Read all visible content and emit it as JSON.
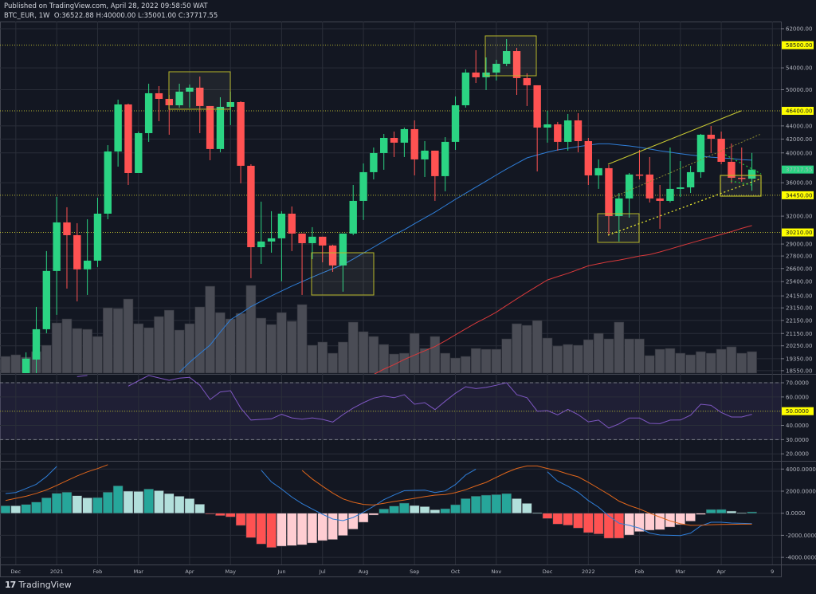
{
  "header": {
    "published": "Published on TradingView.com, April 28, 2022 09:58:50 WAT",
    "symbol_line": "BTC_EUR, 1W  O:36522.88 H:40000.00 L:35001.00 C:37717.55"
  },
  "footer": {
    "logo_mark": "17",
    "brand": "TradingView"
  },
  "colors": {
    "up": "#2bd483",
    "down": "#ff5252",
    "volume": "#4a4c55",
    "ma_fast": "#2962ff",
    "ma_slow": "#e53935",
    "rsi": "#7e57c2",
    "macd": "#2196f3",
    "signal": "#ff6d00",
    "level": "#ffff00",
    "hist_up_strong": "#26a69a",
    "hist_up_weak": "#b2dfdb",
    "hist_down_strong": "#ff5252",
    "hist_down_weak": "#ffcdd2"
  },
  "chart_data": {
    "type": "candlestick",
    "symbol": "BTC_EUR",
    "interval": "1W",
    "y_scale": "log",
    "ylim": [
      18550,
      62000
    ],
    "grid": true,
    "weeks": [
      "2020-11-30",
      "2020-12-07",
      "2020-12-14",
      "2020-12-21",
      "2020-12-28",
      "2021-01-04",
      "2021-01-11",
      "2021-01-18",
      "2021-01-25",
      "2021-02-01",
      "2021-02-08",
      "2021-02-15",
      "2021-02-22",
      "2021-03-01",
      "2021-03-08",
      "2021-03-15",
      "2021-03-22",
      "2021-03-29",
      "2021-04-05",
      "2021-04-12",
      "2021-04-19",
      "2021-04-26",
      "2021-05-03",
      "2021-05-10",
      "2021-05-17",
      "2021-05-24",
      "2021-05-31",
      "2021-06-07",
      "2021-06-14",
      "2021-06-21",
      "2021-06-28",
      "2021-07-05",
      "2021-07-12",
      "2021-07-19",
      "2021-07-26",
      "2021-08-02",
      "2021-08-09",
      "2021-08-16",
      "2021-08-23",
      "2021-08-30",
      "2021-09-06",
      "2021-09-13",
      "2021-09-20",
      "2021-09-27",
      "2021-10-04",
      "2021-10-11",
      "2021-10-18",
      "2021-10-25",
      "2021-11-01",
      "2021-11-08",
      "2021-11-15",
      "2021-11-22",
      "2021-11-29",
      "2021-12-06",
      "2021-12-13",
      "2021-12-20",
      "2021-12-27",
      "2022-01-03",
      "2022-01-10",
      "2022-01-17",
      "2022-01-24",
      "2022-01-31",
      "2022-02-07",
      "2022-02-14",
      "2022-02-21",
      "2022-02-28",
      "2022-03-07",
      "2022-03-14",
      "2022-03-21",
      "2022-03-28",
      "2022-04-04",
      "2022-04-11",
      "2022-04-18",
      "2022-04-25"
    ],
    "ohlc": [
      null,
      null,
      [
        18390,
        19790,
        18390,
        19350
      ],
      [
        19290,
        23230,
        18390,
        21470
      ],
      [
        21470,
        28290,
        21170,
        26370
      ],
      [
        26370,
        34250,
        22590,
        31300
      ],
      [
        31300,
        33020,
        24780,
        29920
      ],
      [
        29920,
        31210,
        23690,
        26520
      ],
      [
        26520,
        31650,
        24230,
        27350
      ],
      [
        27350,
        34150,
        26740,
        32280
      ],
      [
        32280,
        41110,
        31650,
        40200
      ],
      [
        40200,
        48270,
        38110,
        47460
      ],
      [
        47460,
        47600,
        35720,
        37260
      ],
      [
        37260,
        43130,
        37260,
        42890
      ],
      [
        42890,
        51060,
        41590,
        49370
      ],
      [
        49370,
        50630,
        44740,
        48400
      ],
      [
        48400,
        49090,
        42650,
        47320
      ],
      [
        47320,
        51060,
        46930,
        49650
      ],
      [
        49650,
        50920,
        46930,
        50350
      ],
      [
        50350,
        52370,
        42890,
        47200
      ],
      [
        47200,
        47200,
        38980,
        40550
      ],
      [
        40550,
        48680,
        40090,
        47060
      ],
      [
        47060,
        49650,
        44120,
        47860
      ],
      [
        47860,
        48000,
        35930,
        38220
      ],
      [
        38220,
        38435,
        25710,
        28680
      ],
      [
        28680,
        33680,
        27040,
        29260
      ],
      [
        29260,
        32560,
        28130,
        29590
      ],
      [
        29590,
        32560,
        25420,
        32280
      ],
      [
        32280,
        33110,
        28290,
        30090
      ],
      [
        30090,
        30090,
        24230,
        29090
      ],
      [
        29090,
        30780,
        27500,
        29760
      ],
      [
        29760,
        29760,
        27190,
        28850
      ],
      [
        28850,
        28930,
        26290,
        26890
      ],
      [
        26890,
        30090,
        24510,
        30090
      ],
      [
        30090,
        35720,
        29920,
        33770
      ],
      [
        33770,
        38540,
        31570,
        37370
      ],
      [
        37370,
        40770,
        36430,
        39980
      ],
      [
        39980,
        42770,
        37690,
        42170
      ],
      [
        42170,
        43130,
        39420,
        41470
      ],
      [
        41470,
        43740,
        39420,
        43500
      ],
      [
        43500,
        44860,
        36950,
        39090
      ],
      [
        39090,
        41700,
        36740,
        40320
      ],
      [
        40320,
        40320,
        33770,
        36850
      ],
      [
        36850,
        42290,
        34930,
        41590
      ],
      [
        41590,
        48810,
        40430,
        47320
      ],
      [
        47320,
        53720,
        46930,
        53110
      ],
      [
        53110,
        57470,
        51200,
        52230
      ],
      [
        52230,
        56030,
        49930,
        53110
      ],
      [
        53110,
        55560,
        51640,
        54780
      ],
      [
        54780,
        59770,
        54320,
        57300
      ],
      [
        57300,
        57950,
        49090,
        52080
      ],
      [
        52080,
        52960,
        47200,
        50780
      ],
      [
        50780,
        50780,
        37470,
        43740
      ],
      [
        43740,
        46410,
        41470,
        44240
      ],
      [
        44240,
        44620,
        40320,
        41590
      ],
      [
        41590,
        45890,
        40320,
        44860
      ],
      [
        44860,
        46020,
        40090,
        41700
      ],
      [
        41700,
        42170,
        35720,
        36950
      ],
      [
        36950,
        39090,
        35230,
        37900
      ],
      [
        37900,
        38330,
        29920,
        32010
      ],
      [
        32010,
        34730,
        29260,
        34060
      ],
      [
        34060,
        37260,
        31830,
        37060
      ],
      [
        37060,
        40430,
        36430,
        36950
      ],
      [
        37060,
        39420,
        33580,
        34060
      ],
      [
        34060,
        35720,
        30600,
        33770
      ],
      [
        33770,
        40770,
        33580,
        35230
      ],
      [
        35230,
        38860,
        34250,
        35420
      ],
      [
        35420,
        38220,
        34730,
        37370
      ],
      [
        37370,
        42770,
        36640,
        42650
      ],
      [
        42650,
        43990,
        39980,
        42050
      ],
      [
        42050,
        43130,
        38435,
        38760
      ],
      [
        38760,
        41350,
        35930,
        36640
      ],
      [
        36640,
        40770,
        36130,
        36520
      ],
      [
        36522.88,
        40000,
        35001,
        37717.55
      ]
    ],
    "volume_relative": [
      21,
      23,
      20,
      27,
      35,
      63,
      68,
      56,
      55,
      46,
      82,
      81,
      93,
      62,
      57,
      71,
      79,
      54,
      62,
      83,
      109,
      76,
      68,
      75,
      110,
      69,
      61,
      76,
      65,
      86,
      35,
      39,
      25,
      39,
      64,
      52,
      46,
      36,
      24,
      25,
      50,
      31,
      46,
      25,
      19,
      21,
      31,
      30,
      30,
      43,
      62,
      60,
      66,
      44,
      34,
      36,
      35,
      42,
      50,
      43,
      64,
      43,
      43,
      22,
      30,
      31,
      25,
      23,
      27,
      25,
      30,
      33,
      25,
      27
    ],
    "ma_fast": [
      null,
      null,
      null,
      null,
      null,
      null,
      null,
      null,
      null,
      null,
      null,
      null,
      null,
      null,
      null,
      null,
      null,
      18450,
      19100,
      19700,
      20300,
      21250,
      22200,
      22700,
      23250,
      23700,
      24150,
      24575,
      25000,
      25400,
      25800,
      26200,
      26580,
      26965,
      27500,
      28100,
      28680,
      29300,
      29950,
      30500,
      31150,
      31800,
      32450,
      33200,
      33960,
      34700,
      35450,
      36200,
      37000,
      37800,
      38550,
      39300,
      39700,
      40100,
      40430,
      40650,
      40900,
      41100,
      41300,
      41300,
      41150,
      41000,
      40800,
      40550,
      40300,
      40100,
      39900,
      39700,
      39550,
      39400,
      39300,
      39200,
      39050,
      38980
    ],
    "ma_slow": [
      null,
      null,
      null,
      null,
      null,
      null,
      null,
      null,
      null,
      null,
      null,
      null,
      null,
      null,
      null,
      null,
      null,
      null,
      null,
      null,
      null,
      null,
      null,
      null,
      null,
      null,
      null,
      null,
      null,
      null,
      null,
      null,
      null,
      null,
      null,
      null,
      18300,
      18650,
      18950,
      19300,
      19600,
      19900,
      20200,
      20600,
      21050,
      21500,
      21950,
      22350,
      22800,
      23350,
      23900,
      24450,
      25000,
      25550,
      25850,
      26150,
      26500,
      26850,
      27050,
      27250,
      27400,
      27600,
      27800,
      27950,
      28200,
      28500,
      28800,
      29100,
      29400,
      29700,
      30000,
      30300,
      30650,
      30950
    ],
    "levels": [
      {
        "price": 58500,
        "label": "58500.00"
      },
      {
        "price": 46400,
        "label": "46400.00"
      },
      {
        "price": 34450,
        "label": "34450.00"
      },
      {
        "price": 30210,
        "label": "30210.00"
      }
    ],
    "last_price": {
      "price": 37717.55,
      "label": "37717.55"
    },
    "y_ticks": [
      {
        "v": 62000,
        "label": "62000.00"
      },
      {
        "v": 54000,
        "label": "54000.00"
      },
      {
        "v": 50000,
        "label": "50000.00"
      },
      {
        "v": 44000,
        "label": "44000.00"
      },
      {
        "v": 42000,
        "label": "42000.00"
      },
      {
        "v": 40000,
        "label": "40000.00"
      },
      {
        "v": 36000,
        "label": "36000.00"
      },
      {
        "v": 32000,
        "label": "32000.00"
      },
      {
        "v": 29000,
        "label": "29000.00"
      },
      {
        "v": 27800,
        "label": "27800.00"
      },
      {
        "v": 26600,
        "label": "26600.00"
      },
      {
        "v": 25400,
        "label": "25400.00"
      },
      {
        "v": 24150,
        "label": "24150.00"
      },
      {
        "v": 23150,
        "label": "23150.00"
      },
      {
        "v": 22150,
        "label": "22150.00"
      },
      {
        "v": 21150,
        "label": "21150.00"
      },
      {
        "v": 20250,
        "label": "20250.00"
      },
      {
        "v": 19350,
        "label": "19350.00"
      },
      {
        "v": 18550,
        "label": "18550.00"
      }
    ],
    "x_ticks": [
      {
        "date": "2020-12-07",
        "label": "Dec"
      },
      {
        "date": "2021-01-04",
        "label": "2021"
      },
      {
        "date": "2021-02-01",
        "label": "Feb"
      },
      {
        "date": "2021-03-01",
        "label": "Mar"
      },
      {
        "date": "2021-04-05",
        "label": "Apr"
      },
      {
        "date": "2021-05-03",
        "label": "May"
      },
      {
        "date": "2021-06-07",
        "label": "Jun"
      },
      {
        "date": "2021-07-05",
        "label": "Jul"
      },
      {
        "date": "2021-08-02",
        "label": "Aug"
      },
      {
        "date": "2021-09-06",
        "label": "Sep"
      },
      {
        "date": "2021-10-04",
        "label": "Oct"
      },
      {
        "date": "2021-11-01",
        "label": "Nov"
      },
      {
        "date": "2021-12-06",
        "label": "Dec"
      },
      {
        "date": "2022-01-03",
        "label": "2022"
      },
      {
        "date": "2022-02-07",
        "label": "Feb"
      },
      {
        "date": "2022-03-07",
        "label": "Mar"
      },
      {
        "date": "2022-04-04",
        "label": "Apr"
      },
      {
        "date": "2022-05-09",
        "label": "9"
      }
    ],
    "rsi": {
      "ylim": [
        15,
        76
      ],
      "bands": [
        30,
        70
      ],
      "mid": {
        "v": 50,
        "label": "50.0000"
      },
      "ticks": [
        {
          "v": 70,
          "label": "70.0000"
        },
        {
          "v": 60,
          "label": "60.0000"
        },
        {
          "v": 40,
          "label": "40.0000"
        },
        {
          "v": 30,
          "label": "30.0000"
        },
        {
          "v": 20,
          "label": "20.0000"
        }
      ],
      "values": [
        null,
        null,
        null,
        null,
        null,
        null,
        null,
        74.3,
        75.1,
        null,
        null,
        null,
        67.6,
        71.4,
        75.1,
        73.4,
        71.7,
        73.2,
        73.8,
        68.2,
        58.2,
        63.5,
        64.4,
        52.2,
        43.8,
        44.2,
        44.6,
        47.8,
        45.3,
        44.4,
        45.3,
        44.2,
        42.4,
        47.6,
        52.2,
        56.0,
        59.2,
        60.7,
        59.5,
        61.6,
        54.9,
        56.0,
        51.1,
        57.0,
        62.6,
        67.2,
        65.9,
        66.7,
        68.2,
        70.0,
        61.6,
        59.5,
        50.0,
        50.4,
        47.4,
        51.3,
        47.6,
        42.5,
        43.7,
        38.1,
        41.0,
        45.2,
        45.2,
        41.4,
        41.2,
        43.7,
        43.8,
        47.2,
        54.9,
        54.1,
        49.1,
        45.9,
        45.9,
        47.8
      ]
    },
    "macd": {
      "ylim": [
        -4700,
        4670
      ],
      "ticks": [
        {
          "v": 4000,
          "label": "4000.0000"
        },
        {
          "v": 2000,
          "label": "2000.0000"
        },
        {
          "v": 0,
          "label": "0.0000"
        },
        {
          "v": -2000,
          "label": "-2000.0000"
        },
        {
          "v": -4000,
          "label": "-4000.0000"
        }
      ],
      "histogram": [
        674,
        674,
        794,
        1011,
        1396,
        1805,
        1902,
        1589,
        1396,
        1420,
        1902,
        2479,
        1998,
        1974,
        2190,
        2046,
        1781,
        1540,
        1324,
        818,
        -48,
        -217,
        -337,
        -1107,
        -2214,
        -2792,
        -3105,
        -2985,
        -2937,
        -2864,
        -2696,
        -2479,
        -2383,
        -2022,
        -1444,
        -818,
        -168,
        385,
        650,
        915,
        698,
        602,
        313,
        409,
        770,
        1324,
        1540,
        1637,
        1685,
        1781,
        1324,
        891,
        48,
        -481,
        -987,
        -1083,
        -1348,
        -1757,
        -1877,
        -2263,
        -2263,
        -1974,
        -1661,
        -1540,
        -1492,
        -1252,
        -1035,
        -722,
        -120,
        337,
        340,
        193,
        48,
        120
      ],
      "macd_line": [
        1781,
        1877,
        2239,
        2624,
        3322,
        4236,
        null,
        null,
        null,
        null,
        null,
        null,
        null,
        null,
        null,
        null,
        null,
        null,
        null,
        null,
        null,
        null,
        null,
        null,
        null,
        3900,
        2840,
        2190,
        1468,
        866,
        385,
        -96,
        -530,
        -674,
        -385,
        96,
        626,
        1228,
        1650,
        2046,
        2070,
        2094,
        1877,
        2022,
        2600,
        3466,
        3996,
        null,
        null,
        null,
        null,
        null,
        null,
        3755,
        2900,
        2450,
        1900,
        1150,
        550,
        -250,
        -900,
        -1100,
        -1350,
        -1800,
        -1974,
        -2000,
        -2022,
        -1800,
        -1150,
        -818,
        -818,
        -890,
        -920,
        -939
      ],
      "signal_line": [
        1155,
        1348,
        1540,
        1800,
        2110,
        2520,
        2950,
        3380,
        3750,
        4044,
        4400,
        null,
        null,
        null,
        null,
        null,
        null,
        null,
        null,
        null,
        null,
        null,
        null,
        null,
        null,
        null,
        null,
        null,
        null,
        3875,
        3100,
        2450,
        1829,
        1300,
        1000,
        800,
        746,
        900,
        1060,
        1200,
        1350,
        1500,
        1640,
        1700,
        1860,
        2130,
        2480,
        2792,
        3250,
        3700,
        4060,
        4284,
        4280,
        4050,
        3850,
        3550,
        3300,
        2800,
        2250,
        1700,
        1100,
        700,
        385,
        0,
        -350,
        -700,
        -950,
        -1100,
        -1080,
        -1040,
        -1020,
        -1000,
        -990,
        -987
      ]
    }
  }
}
